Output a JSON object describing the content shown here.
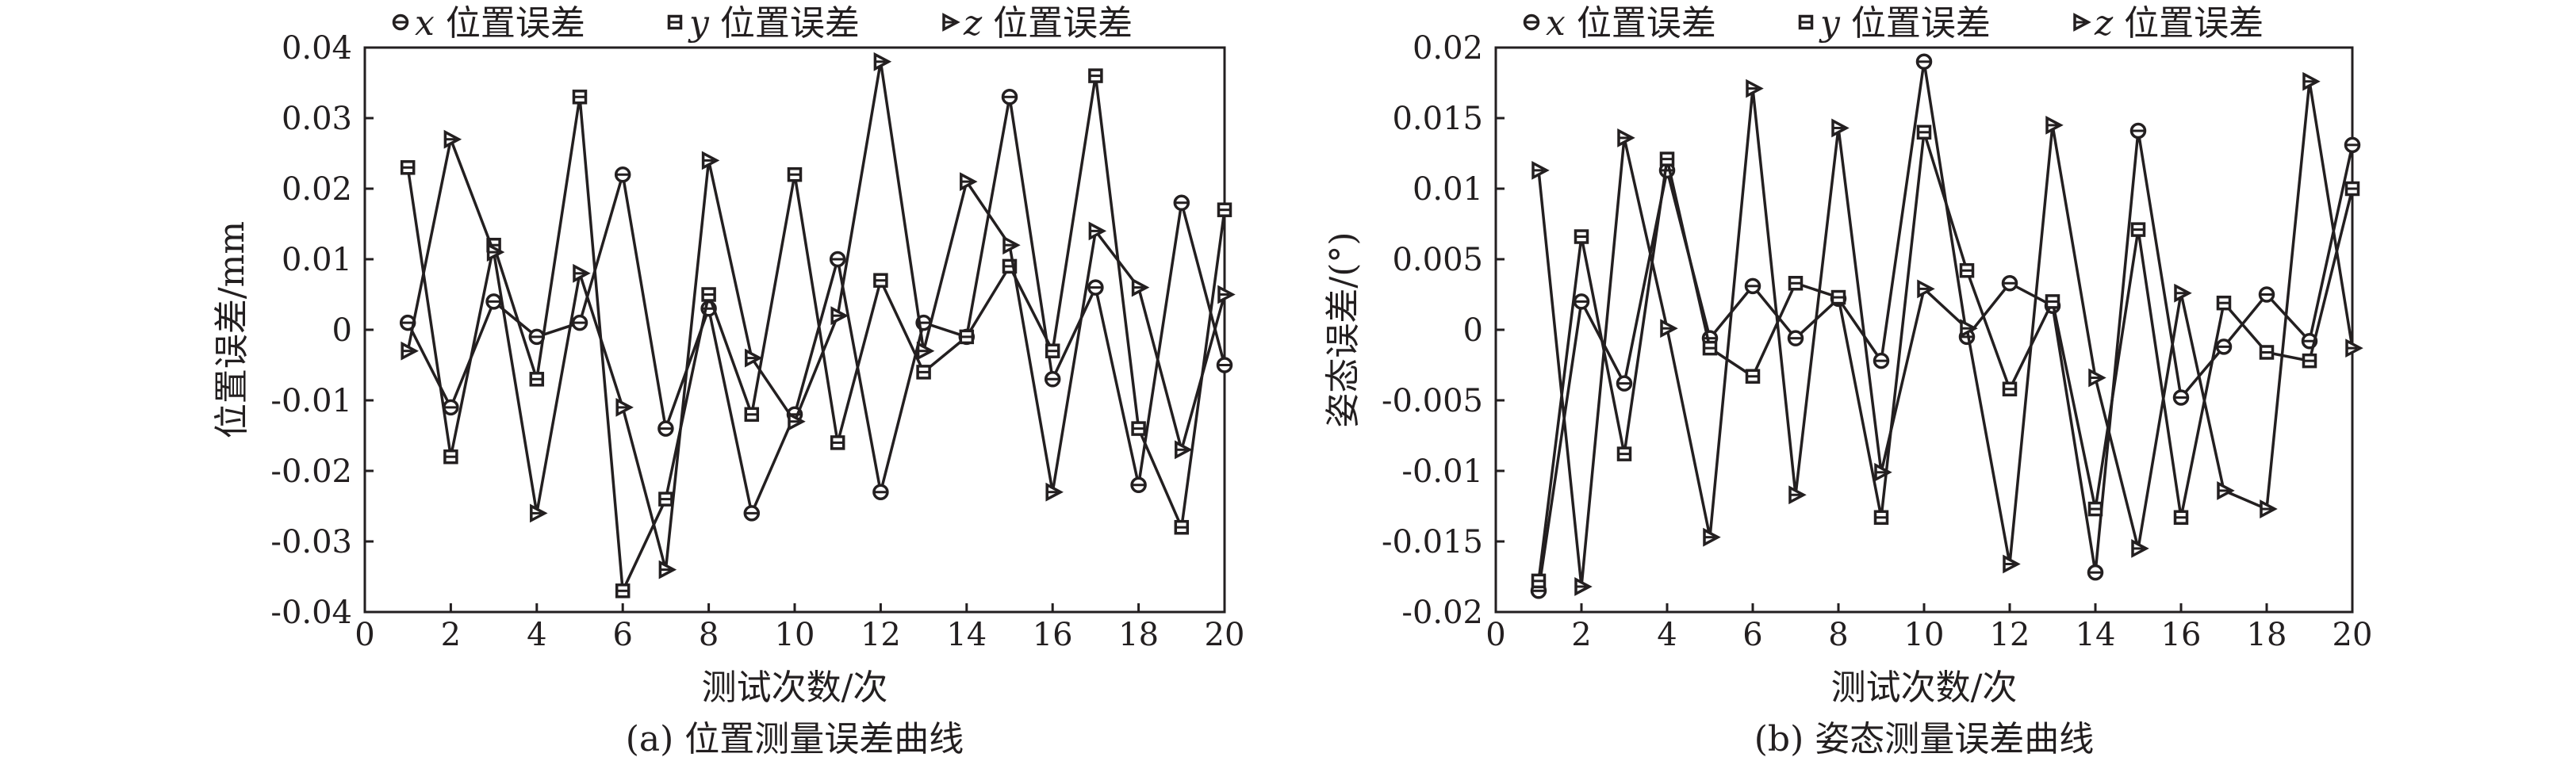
{
  "chart_data": [
    {
      "type": "line",
      "caption": "(a) 位置测量误差曲线",
      "xlabel": "测试次数/次",
      "ylabel": "位置误差/mm",
      "xlim": [
        0,
        20
      ],
      "ylim": [
        -0.04,
        0.04
      ],
      "xticks": [
        "0",
        "2",
        "4",
        "6",
        "8",
        "10",
        "12",
        "14",
        "16",
        "18",
        "20"
      ],
      "yticks": [
        "-0.04",
        "-0.03",
        "-0.02",
        "-0.01",
        "0",
        "0.01",
        "0.02",
        "0.03",
        "0.04"
      ],
      "legend_position": "top",
      "grid": false,
      "x": [
        1,
        2,
        3,
        4,
        5,
        6,
        7,
        8,
        9,
        10,
        11,
        12,
        13,
        14,
        15,
        16,
        17,
        18,
        19,
        20
      ],
      "series": [
        {
          "name": "x 位置误差",
          "var": "x",
          "label": " 位置误差",
          "marker": "circle",
          "values": [
            0.001,
            -0.011,
            0.004,
            -0.001,
            0.001,
            0.022,
            -0.014,
            0.003,
            -0.026,
            -0.012,
            0.01,
            -0.023,
            0.001,
            -0.001,
            0.033,
            -0.007,
            0.006,
            -0.022,
            0.018,
            -0.005
          ]
        },
        {
          "name": "y 位置误差",
          "var": "y",
          "label": " 位置误差",
          "marker": "square",
          "values": [
            0.023,
            -0.018,
            0.012,
            -0.007,
            0.033,
            -0.037,
            -0.024,
            0.005,
            -0.012,
            0.022,
            -0.016,
            0.007,
            -0.006,
            -0.001,
            0.009,
            -0.003,
            0.036,
            -0.014,
            -0.028,
            0.017
          ]
        },
        {
          "name": "z 位置误差",
          "var": "z",
          "label": " 位置误差",
          "marker": "triangle",
          "values": [
            -0.003,
            0.027,
            0.011,
            -0.026,
            0.008,
            -0.011,
            -0.034,
            0.024,
            -0.004,
            -0.013,
            0.002,
            0.038,
            -0.003,
            0.021,
            0.012,
            -0.023,
            0.014,
            0.006,
            -0.017,
            0.005
          ]
        }
      ]
    },
    {
      "type": "line",
      "caption": "(b) 姿态测量误差曲线",
      "xlabel": "测试次数/次",
      "ylabel": "姿态误差/(°)",
      "xlim": [
        0,
        20
      ],
      "ylim": [
        -0.02,
        0.02
      ],
      "xticks": [
        "0",
        "2",
        "4",
        "6",
        "8",
        "10",
        "12",
        "14",
        "16",
        "18",
        "20"
      ],
      "yticks": [
        "-0.02",
        "-0.015",
        "-0.01",
        "-0.005",
        "0",
        "0.005",
        "0.01",
        "0.015",
        "0.02"
      ],
      "legend_position": "top",
      "grid": false,
      "x": [
        1,
        2,
        3,
        4,
        5,
        6,
        7,
        8,
        9,
        10,
        11,
        12,
        13,
        14,
        15,
        16,
        17,
        18,
        19,
        20
      ],
      "series": [
        {
          "name": "x 位置误差",
          "var": "x",
          "label": " 位置误差",
          "marker": "circle",
          "values": [
            -0.0185,
            0.002,
            -0.0038,
            0.0113,
            -0.0006,
            0.0031,
            -0.0006,
            0.0022,
            -0.0022,
            0.019,
            -0.0005,
            0.0033,
            0.0017,
            -0.0172,
            0.0141,
            -0.0048,
            -0.0012,
            0.0025,
            -0.0008,
            0.0131
          ]
        },
        {
          "name": "y 位置误差",
          "var": "y",
          "label": " 位置误差",
          "marker": "square",
          "values": [
            -0.0178,
            0.0066,
            -0.0088,
            0.0121,
            -0.0013,
            -0.0033,
            0.0033,
            0.0023,
            -0.0133,
            0.014,
            0.0042,
            -0.0042,
            0.002,
            -0.0127,
            0.0071,
            -0.0133,
            0.0019,
            -0.0016,
            -0.0022,
            0.01
          ]
        },
        {
          "name": "z 位置误差",
          "var": "z",
          "label": " 位置误差",
          "marker": "triangle",
          "values": [
            0.0113,
            -0.0182,
            0.0136,
            0.0001,
            -0.0147,
            0.0171,
            -0.0117,
            0.0143,
            -0.0101,
            0.0029,
            0.0001,
            -0.0166,
            0.0145,
            -0.0034,
            -0.0155,
            0.0026,
            -0.0114,
            -0.0127,
            0.0176,
            -0.0013
          ]
        }
      ]
    }
  ]
}
